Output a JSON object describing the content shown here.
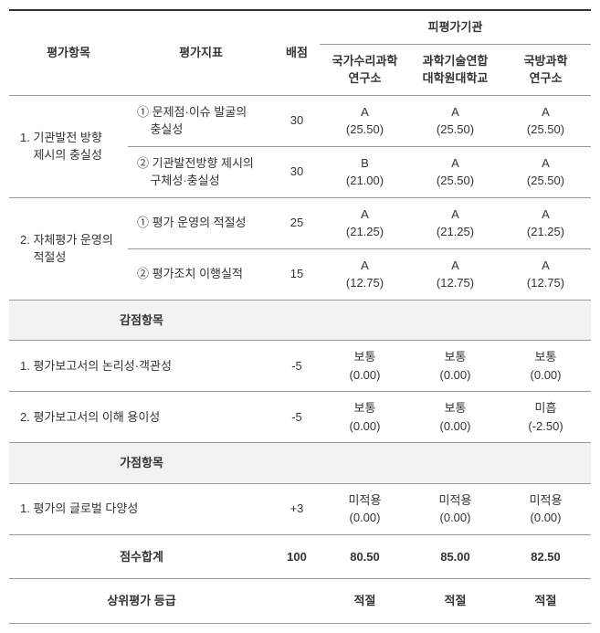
{
  "header": {
    "col_item": "평가항목",
    "col_indicator": "평가지표",
    "col_score": "배점",
    "col_institution_group": "피평가기관",
    "institutions": [
      "국가수리과학\n연구소",
      "과학기술연합\n대학원대학교",
      "국방과학\n연구소"
    ]
  },
  "categories": [
    {
      "label": "1. 기관발전 방향\n    제시의 충실성",
      "indicators": [
        {
          "label": "① 문제점·이슈 발굴의\n    충실성",
          "score": "30",
          "values": [
            "A\n(25.50)",
            "A\n(25.50)",
            "A\n(25.50)"
          ]
        },
        {
          "label": "② 기관발전방향 제시의\n    구체성·충실성",
          "score": "30",
          "values": [
            "B\n(21.00)",
            "A\n(25.50)",
            "A\n(25.50)"
          ]
        }
      ]
    },
    {
      "label": "2. 자체평가 운영의\n    적절성",
      "indicators": [
        {
          "label": "① 평가 운영의 적절성",
          "score": "25",
          "values": [
            "A\n(21.25)",
            "A\n(21.25)",
            "A\n(21.25)"
          ]
        },
        {
          "label": "② 평가조치 이행실적",
          "score": "15",
          "values": [
            "A\n(12.75)",
            "A\n(12.75)",
            "A\n(12.75)"
          ]
        }
      ]
    }
  ],
  "penalty_section": {
    "title": "감점항목",
    "items": [
      {
        "label": "1. 평가보고서의 논리성·객관성",
        "score": "-5",
        "values": [
          "보통\n(0.00)",
          "보통\n(0.00)",
          "보통\n(0.00)"
        ]
      },
      {
        "label": "2. 평가보고서의 이해 용이성",
        "score": "-5",
        "values": [
          "보통\n(0.00)",
          "보통\n(0.00)",
          "미흡\n(-2.50)"
        ]
      }
    ]
  },
  "bonus_section": {
    "title": "가점항목",
    "items": [
      {
        "label": "1. 평가의 글로벌 다양성",
        "score": "+3",
        "values": [
          "미적용\n(0.00)",
          "미적용\n(0.00)",
          "미적용\n(0.00)"
        ]
      }
    ]
  },
  "total": {
    "label": "점수합계",
    "score": "100",
    "values": [
      "80.50",
      "85.00",
      "82.50"
    ]
  },
  "grade": {
    "label": "상위평가 등급",
    "values": [
      "적절",
      "적절",
      "적절"
    ]
  },
  "colors": {
    "border": "#999999",
    "border_top": "#333333",
    "section_bg": "#f2f2f2",
    "text": "#333333",
    "bg": "#ffffff"
  }
}
